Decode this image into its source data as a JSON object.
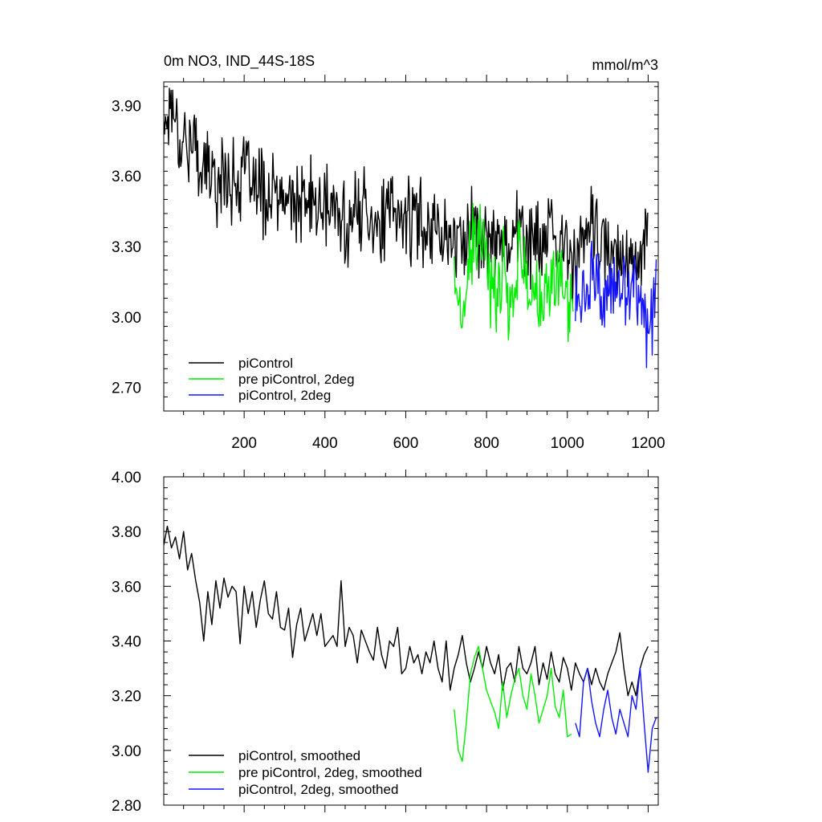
{
  "colors": {
    "black": "#000000",
    "green": "#00ee00",
    "blue": "#1414ff"
  },
  "chart_data": [
    {
      "type": "line",
      "title": "0m NO3, IND_44S-18S",
      "units": "mmol/m^3",
      "xlabel": "",
      "ylabel": "",
      "xlim": [
        1,
        1225
      ],
      "ylim": [
        2.6,
        4.0
      ],
      "xticks": [
        200,
        400,
        600,
        800,
        1000,
        1200
      ],
      "xtick_labels": [
        "200",
        "400",
        "600",
        "800",
        "1000",
        "1200"
      ],
      "yticks": [
        2.7,
        3.0,
        3.3,
        3.6,
        3.9
      ],
      "ytick_labels": [
        "2.70",
        "3.00",
        "3.30",
        "3.60",
        "3.90"
      ],
      "legend": "bottom-left",
      "series": [
        {
          "name": "piControl",
          "color": "#000000",
          "x": [
            1,
            20,
            40,
            60,
            80,
            100,
            120,
            140,
            160,
            180,
            200,
            220,
            240,
            260,
            280,
            300,
            320,
            340,
            360,
            380,
            400,
            420,
            440,
            460,
            480,
            500,
            520,
            540,
            560,
            580,
            600,
            620,
            640,
            660,
            680,
            700,
            720,
            740,
            760,
            780,
            800,
            820,
            840,
            860,
            880,
            900,
            920,
            940,
            960,
            980,
            1000,
            1020,
            1040,
            1060,
            1080,
            1100,
            1120,
            1140,
            1160,
            1180,
            1200
          ],
          "values": [
            3.82,
            3.93,
            3.78,
            3.75,
            3.7,
            3.65,
            3.6,
            3.58,
            3.62,
            3.55,
            3.62,
            3.55,
            3.55,
            3.5,
            3.52,
            3.48,
            3.5,
            3.45,
            3.5,
            3.48,
            3.45,
            3.47,
            3.42,
            3.4,
            3.45,
            3.47,
            3.42,
            3.38,
            3.45,
            3.4,
            3.45,
            3.38,
            3.42,
            3.4,
            3.38,
            3.35,
            3.3,
            3.33,
            3.4,
            3.35,
            3.3,
            3.35,
            3.36,
            3.32,
            3.38,
            3.3,
            3.33,
            3.3,
            3.35,
            3.28,
            3.3,
            3.25,
            3.3,
            3.4,
            3.3,
            3.25,
            3.28,
            3.3,
            3.22,
            3.3,
            3.4
          ]
        },
        {
          "name": "pre piControl, 2deg",
          "color": "#00ee00",
          "x": [
            720,
            740,
            760,
            780,
            800,
            820,
            840,
            860,
            880,
            900,
            920,
            940,
            960,
            980,
            1000,
            1015
          ],
          "values": [
            3.2,
            2.95,
            3.25,
            3.35,
            3.2,
            3.1,
            3.2,
            3.05,
            3.3,
            3.15,
            3.1,
            3.0,
            3.15,
            3.2,
            3.05,
            3.1
          ]
        },
        {
          "name": "piControl, 2deg",
          "color": "#1414ff",
          "x": [
            1020,
            1040,
            1060,
            1080,
            1100,
            1120,
            1140,
            1160,
            1180,
            1200,
            1220
          ],
          "values": [
            3.1,
            3.05,
            3.2,
            3.1,
            3.05,
            3.15,
            3.05,
            3.2,
            3.1,
            2.9,
            3.15
          ]
        }
      ]
    },
    {
      "type": "line",
      "title": "",
      "xlabel": "",
      "ylabel": "",
      "xlim": [
        1,
        1225
      ],
      "ylim": [
        2.8,
        4.0
      ],
      "xticks": [
        200,
        400,
        600,
        800,
        1000,
        1200
      ],
      "xtick_labels": [],
      "yticks": [
        2.8,
        3.0,
        3.2,
        3.4,
        3.6,
        3.8,
        4.0
      ],
      "ytick_labels": [
        "2.80",
        "3.00",
        "3.20",
        "3.40",
        "3.60",
        "3.80",
        "4.00"
      ],
      "legend": "bottom-left",
      "series": [
        {
          "name": "piControl, smoothed",
          "color": "#000000",
          "x": [
            1,
            10,
            20,
            30,
            40,
            50,
            60,
            70,
            80,
            90,
            100,
            110,
            120,
            130,
            140,
            150,
            160,
            170,
            180,
            190,
            200,
            210,
            220,
            230,
            240,
            250,
            260,
            270,
            280,
            290,
            300,
            310,
            320,
            330,
            340,
            350,
            360,
            370,
            380,
            390,
            400,
            410,
            420,
            430,
            440,
            450,
            460,
            470,
            480,
            490,
            500,
            510,
            520,
            530,
            540,
            550,
            560,
            570,
            580,
            590,
            600,
            610,
            620,
            630,
            640,
            650,
            660,
            670,
            680,
            690,
            700,
            710,
            720,
            730,
            740,
            750,
            760,
            770,
            780,
            790,
            800,
            810,
            820,
            830,
            840,
            850,
            860,
            870,
            880,
            890,
            900,
            910,
            920,
            930,
            940,
            950,
            960,
            970,
            980,
            990,
            1000,
            1010,
            1020,
            1030,
            1040,
            1050,
            1060,
            1070,
            1080,
            1090,
            1100,
            1110,
            1120,
            1130,
            1140,
            1150,
            1160,
            1170,
            1180,
            1190,
            1200
          ],
          "values": [
            3.75,
            3.82,
            3.74,
            3.78,
            3.7,
            3.8,
            3.66,
            3.72,
            3.62,
            3.54,
            3.4,
            3.58,
            3.46,
            3.62,
            3.52,
            3.63,
            3.56,
            3.6,
            3.58,
            3.39,
            3.6,
            3.5,
            3.58,
            3.45,
            3.55,
            3.62,
            3.5,
            3.48,
            3.58,
            3.45,
            3.44,
            3.52,
            3.34,
            3.46,
            3.52,
            3.4,
            3.45,
            3.5,
            3.42,
            3.5,
            3.38,
            3.4,
            3.42,
            3.38,
            3.62,
            3.38,
            3.45,
            3.42,
            3.32,
            3.44,
            3.4,
            3.36,
            3.33,
            3.45,
            3.35,
            3.3,
            3.4,
            3.38,
            3.45,
            3.28,
            3.3,
            3.38,
            3.32,
            3.35,
            3.28,
            3.36,
            3.32,
            3.4,
            3.3,
            3.25,
            3.4,
            3.22,
            3.3,
            3.35,
            3.42,
            3.32,
            3.25,
            3.3,
            3.36,
            3.3,
            3.38,
            3.32,
            3.28,
            3.35,
            3.22,
            3.3,
            3.32,
            3.25,
            3.38,
            3.3,
            3.28,
            3.32,
            3.38,
            3.24,
            3.32,
            3.26,
            3.36,
            3.28,
            3.25,
            3.34,
            3.3,
            3.22,
            3.32,
            3.28,
            3.25,
            3.3,
            3.24,
            3.3,
            3.25,
            3.22,
            3.28,
            3.32,
            3.36,
            3.43,
            3.3,
            3.2,
            3.25,
            3.2,
            3.3,
            3.35,
            3.38
          ]
        },
        {
          "name": "pre piControl, 2deg, smoothed",
          "color": "#00ee00",
          "x": [
            720,
            730,
            740,
            750,
            760,
            770,
            780,
            790,
            800,
            810,
            820,
            830,
            840,
            850,
            860,
            870,
            880,
            890,
            900,
            910,
            920,
            930,
            940,
            950,
            960,
            970,
            980,
            990,
            1000,
            1010
          ],
          "values": [
            3.15,
            3.0,
            2.96,
            3.1,
            3.28,
            3.34,
            3.38,
            3.3,
            3.22,
            3.18,
            3.14,
            3.08,
            3.25,
            3.12,
            3.2,
            3.26,
            3.3,
            3.2,
            3.15,
            3.28,
            3.2,
            3.1,
            3.15,
            3.2,
            3.3,
            3.16,
            3.12,
            3.22,
            3.05,
            3.06
          ]
        },
        {
          "name": "piControl, 2deg, smoothed",
          "color": "#1414ff",
          "x": [
            1020,
            1030,
            1040,
            1050,
            1060,
            1070,
            1080,
            1090,
            1100,
            1110,
            1120,
            1130,
            1140,
            1150,
            1160,
            1170,
            1180,
            1190,
            1200,
            1210,
            1220
          ],
          "values": [
            3.1,
            3.05,
            3.25,
            3.3,
            3.18,
            3.1,
            3.05,
            3.15,
            3.22,
            3.12,
            3.06,
            3.15,
            3.1,
            3.05,
            3.2,
            3.15,
            3.3,
            3.1,
            2.92,
            3.08,
            3.12
          ]
        }
      ]
    }
  ]
}
